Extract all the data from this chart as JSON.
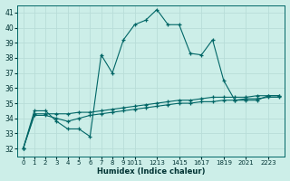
{
  "xlabel": "Humidex (Indice chaleur)",
  "bg_color": "#cceee8",
  "grid_color": "#b8ddd8",
  "line_color": "#006666",
  "xlim": [
    -0.5,
    23.5
  ],
  "ylim": [
    31.5,
    41.5
  ],
  "yticks": [
    32,
    33,
    34,
    35,
    36,
    37,
    38,
    39,
    40,
    41
  ],
  "line1_x": [
    0,
    1,
    2,
    3,
    4,
    5,
    6,
    7,
    8,
    9,
    10,
    11,
    12,
    13,
    14,
    15,
    16,
    17,
    18,
    19,
    20,
    21,
    22,
    23
  ],
  "line1_y": [
    32.0,
    34.5,
    34.5,
    33.8,
    33.3,
    33.3,
    32.8,
    38.2,
    37.0,
    39.2,
    40.2,
    40.5,
    41.2,
    40.2,
    40.2,
    38.3,
    38.2,
    39.2,
    36.5,
    35.2,
    35.2,
    35.2,
    35.5,
    35.5
  ],
  "line2_x": [
    0,
    1,
    2,
    3,
    4,
    5,
    6,
    7,
    8,
    9,
    10,
    11,
    12,
    13,
    14,
    15,
    16,
    17,
    18,
    19,
    20,
    21,
    22,
    23
  ],
  "line2_y": [
    32.0,
    34.3,
    34.3,
    34.3,
    34.3,
    34.4,
    34.4,
    34.5,
    34.6,
    34.7,
    34.8,
    34.9,
    35.0,
    35.1,
    35.2,
    35.2,
    35.3,
    35.4,
    35.4,
    35.4,
    35.4,
    35.5,
    35.5,
    35.5
  ],
  "line3_x": [
    0,
    1,
    2,
    3,
    4,
    5,
    6,
    7,
    8,
    9,
    10,
    11,
    12,
    13,
    14,
    15,
    16,
    17,
    18,
    19,
    20,
    21,
    22,
    23
  ],
  "line3_y": [
    32.0,
    34.2,
    34.2,
    34.0,
    33.8,
    34.0,
    34.2,
    34.3,
    34.4,
    34.5,
    34.6,
    34.7,
    34.8,
    34.9,
    35.0,
    35.0,
    35.1,
    35.1,
    35.2,
    35.2,
    35.3,
    35.3,
    35.4,
    35.4
  ]
}
